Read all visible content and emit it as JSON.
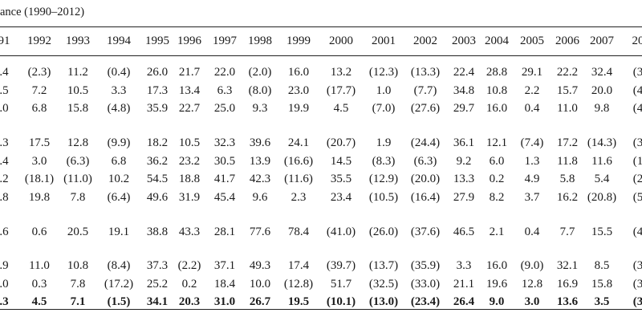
{
  "caption": "ance (1990–2012)",
  "table": {
    "header": [
      "91",
      "1992",
      "1993",
      "1994",
      "1995",
      "1996",
      "1997",
      "1998",
      "1999",
      "2000",
      "2001",
      "2002",
      "2003",
      "2004",
      "2005",
      "2006",
      "2007",
      "20"
    ],
    "groups": [
      [
        [
          ".4",
          "(2.3)",
          "11.2",
          "(0.4)",
          "26.0",
          "21.7",
          "22.0",
          "(2.0)",
          "16.0",
          "13.2",
          "(12.3)",
          "(13.3)",
          "22.4",
          "28.8",
          "29.1",
          "22.2",
          "32.4",
          "(3"
        ],
        [
          ".5",
          "7.2",
          "10.5",
          "3.3",
          "17.3",
          "13.4",
          "6.3",
          "(8.0)",
          "23.0",
          "(17.7)",
          "1.0",
          "(7.7)",
          "34.8",
          "10.8",
          "2.2",
          "15.7",
          "20.0",
          "(4"
        ],
        [
          ".0",
          "6.8",
          "15.8",
          "(4.8)",
          "35.9",
          "22.7",
          "25.0",
          "9.3",
          "19.9",
          "4.5",
          "(7.0)",
          "(27.6)",
          "29.7",
          "16.0",
          "0.4",
          "11.0",
          "9.8",
          "(4"
        ]
      ],
      [
        [
          ".3",
          "17.5",
          "12.8",
          "(9.9)",
          "18.2",
          "10.5",
          "32.3",
          "39.6",
          "24.1",
          "(20.7)",
          "1.9",
          "(24.4)",
          "36.1",
          "12.1",
          "(7.4)",
          "17.2",
          "(14.3)",
          "(3"
        ],
        [
          ".4",
          "3.0",
          "(6.3)",
          "6.8",
          "36.2",
          "23.2",
          "30.5",
          "13.9",
          "(16.6)",
          "14.5",
          "(8.3)",
          "(6.3)",
          "9.2",
          "6.0",
          "1.3",
          "11.8",
          "11.6",
          "(1"
        ],
        [
          ".2",
          "(18.1)",
          "(11.0)",
          "10.2",
          "54.5",
          "18.8",
          "41.7",
          "42.3",
          "(11.6)",
          "35.5",
          "(12.9)",
          "(20.0)",
          "13.3",
          "0.2",
          "4.9",
          "5.8",
          "5.4",
          "(2"
        ],
        [
          ".8",
          "19.8",
          "7.8",
          "(6.4)",
          "49.6",
          "31.9",
          "45.4",
          "9.6",
          "2.3",
          "23.4",
          "(10.5)",
          "(16.4)",
          "27.9",
          "8.2",
          "3.7",
          "16.2",
          "(20.8)",
          "(5"
        ]
      ],
      [
        [
          ".6",
          "0.6",
          "20.5",
          "19.1",
          "38.8",
          "43.3",
          "28.1",
          "77.6",
          "78.4",
          "(41.0)",
          "(26.0)",
          "(37.6)",
          "46.5",
          "2.1",
          "0.4",
          "7.7",
          "15.5",
          "(4"
        ]
      ],
      [
        [
          ".9",
          "11.0",
          "10.8",
          "(8.4)",
          "37.3",
          "(2.2)",
          "37.1",
          "49.3",
          "17.4",
          "(39.7)",
          "(13.7)",
          "(35.9)",
          "3.3",
          "16.0",
          "(9.0)",
          "32.1",
          "8.5",
          "(3"
        ],
        [
          ".0",
          "0.3",
          "7.8",
          "(17.2)",
          "25.2",
          "0.2",
          "18.4",
          "10.0",
          "(12.8)",
          "51.7",
          "(32.5)",
          "(33.0)",
          "21.1",
          "19.6",
          "12.8",
          "16.9",
          "15.8",
          "(3"
        ]
      ]
    ],
    "total_row": [
      ".3",
      "4.5",
      "7.1",
      "(1.5)",
      "34.1",
      "20.3",
      "31.0",
      "26.7",
      "19.5",
      "(10.1)",
      "(13.0)",
      "(23.4)",
      "26.4",
      "9.0",
      "3.0",
      "13.6",
      "3.5",
      "(3"
    ]
  }
}
